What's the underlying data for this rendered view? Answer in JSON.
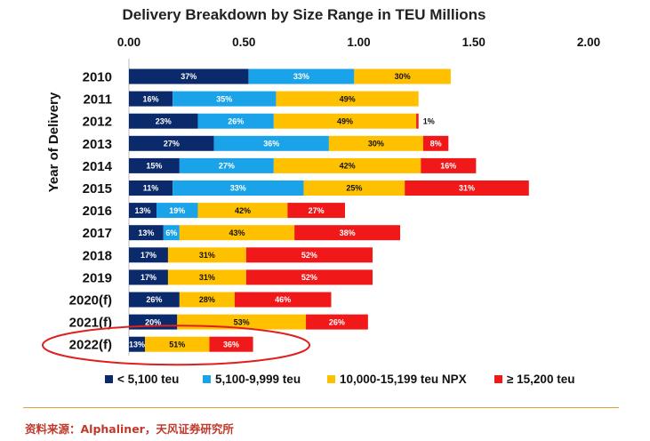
{
  "chart_data": {
    "type": "bar",
    "orientation": "horizontal",
    "stacked": true,
    "title": "Delivery Breakdown by Size Range in TEU Millions",
    "ylabel": "Year of Delivery",
    "xlabel": "",
    "xlim": [
      0,
      2
    ],
    "xticks": [
      "0.00",
      "0.50",
      "1.00",
      "1.50",
      "2.00"
    ],
    "categories": [
      "2010",
      "2011",
      "2012",
      "2013",
      "2014",
      "2015",
      "2016",
      "2017",
      "2018",
      "2019",
      "2020(f)",
      "2021(f)",
      "2022(f)"
    ],
    "series": [
      {
        "name": "< 5,100 teu",
        "color": "#0b2a6b",
        "values": [
          0.52,
          0.19,
          0.3,
          0.37,
          0.22,
          0.19,
          0.12,
          0.15,
          0.17,
          0.17,
          0.22,
          0.21,
          0.07
        ]
      },
      {
        "name": "5,100-9,999 teu",
        "color": "#1aa3e8",
        "values": [
          0.46,
          0.45,
          0.33,
          0.5,
          0.41,
          0.57,
          0.18,
          0.07,
          0.0,
          0.0,
          0.0,
          0.0,
          0.0
        ]
      },
      {
        "name": "10,000-15,199 teu NPX",
        "color": "#ffc000",
        "values": [
          0.42,
          0.62,
          0.62,
          0.41,
          0.64,
          0.44,
          0.39,
          0.5,
          0.34,
          0.34,
          0.24,
          0.56,
          0.28
        ]
      },
      {
        "name": "≥ 15,200 teu",
        "color": "#f01818",
        "values": [
          0.0,
          0.0,
          0.01,
          0.11,
          0.24,
          0.54,
          0.25,
          0.46,
          0.55,
          0.55,
          0.42,
          0.27,
          0.19
        ]
      }
    ],
    "data_labels": [
      [
        "37%",
        "33%",
        "30%",
        ""
      ],
      [
        "16%",
        "35%",
        "49%",
        ""
      ],
      [
        "23%",
        "26%",
        "49%",
        "1%"
      ],
      [
        "27%",
        "36%",
        "30%",
        "8%"
      ],
      [
        "15%",
        "27%",
        "42%",
        "16%"
      ],
      [
        "11%",
        "33%",
        "25%",
        "31%"
      ],
      [
        "13%",
        "19%",
        "42%",
        "27%"
      ],
      [
        "13%",
        "6%",
        "43%",
        "38%"
      ],
      [
        "17%",
        "",
        "31%",
        "52%"
      ],
      [
        "17%",
        "",
        "31%",
        "52%"
      ],
      [
        "26%",
        "",
        "28%",
        "46%"
      ],
      [
        "20%",
        "",
        "53%",
        "26%"
      ],
      [
        "13%",
        "",
        "51%",
        "36%"
      ]
    ],
    "highlight": {
      "category": "2022(f)",
      "shape": "ellipse",
      "color": "#e02020"
    },
    "legend_position": "bottom"
  },
  "source_note": "资料来源：Alphaliner，天风证券研究所"
}
